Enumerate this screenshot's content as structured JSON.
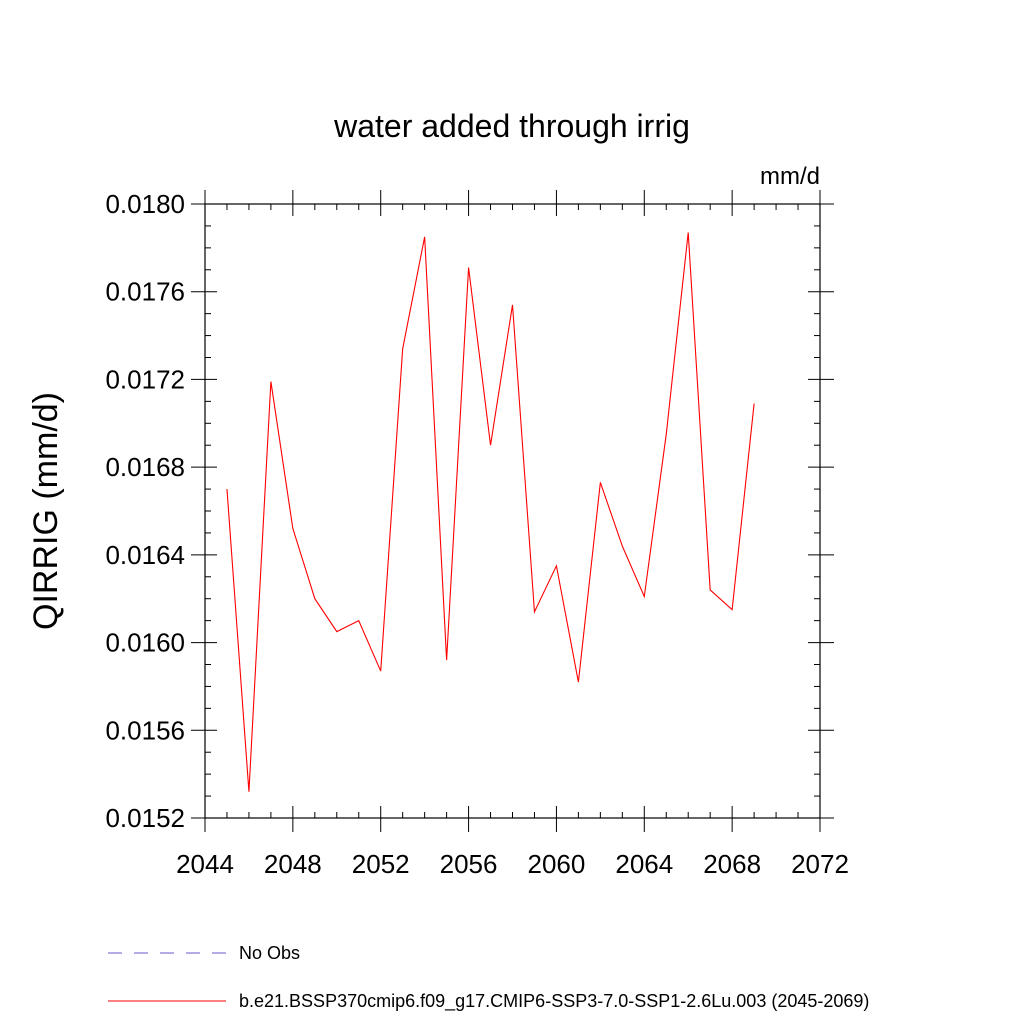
{
  "chart_data": {
    "type": "line",
    "title": "water added through irrig",
    "units": "mm/d",
    "ylabel": "QIRRIG  (mm/d)",
    "xlabel": "",
    "xlim": [
      2044,
      2072
    ],
    "ylim": [
      0.0152,
      0.018
    ],
    "x_ticks": [
      2044,
      2048,
      2052,
      2056,
      2060,
      2064,
      2068,
      2072
    ],
    "x_tick_labels": [
      "2044",
      "2048",
      "2052",
      "2056",
      "2060",
      "2064",
      "2068",
      "2072"
    ],
    "y_ticks": [
      0.0152,
      0.0156,
      0.016,
      0.0164,
      0.0168,
      0.0172,
      0.0176,
      0.018
    ],
    "y_tick_labels": [
      "0.0152",
      "0.0156",
      "0.0160",
      "0.0164",
      "0.0168",
      "0.0172",
      "0.0176",
      "0.0180"
    ],
    "grid": false,
    "legend_position": "bottom",
    "series": [
      {
        "name": "b.e21.BSSP370cmip6.f09_g17.CMIP6-SSP3-7.0-SSP1-2.6Lu.003 (2045-2069)",
        "color": "#ff0000",
        "style": "solid",
        "x": [
          2045,
          2046,
          2047,
          2048,
          2049,
          2050,
          2051,
          2052,
          2053,
          2054,
          2055,
          2056,
          2057,
          2058,
          2059,
          2060,
          2061,
          2062,
          2063,
          2064,
          2065,
          2066,
          2067,
          2068,
          2069
        ],
        "y": [
          0.0167,
          0.01532,
          0.01719,
          0.01652,
          0.0162,
          0.01605,
          0.0161,
          0.01587,
          0.01734,
          0.01785,
          0.01592,
          0.01771,
          0.0169,
          0.01754,
          0.01614,
          0.01635,
          0.01582,
          0.01673,
          0.01644,
          0.01621,
          0.01695,
          0.01787,
          0.01624,
          0.01615,
          0.01709
        ]
      }
    ],
    "legend": [
      {
        "label": "No Obs",
        "color": "#6a5acd",
        "style": "dashed"
      },
      {
        "label": "b.e21.BSSP370cmip6.f09_g17.CMIP6-SSP3-7.0-SSP1-2.6Lu.003 (2045-2069)",
        "color": "#ff0000",
        "style": "solid"
      }
    ]
  }
}
